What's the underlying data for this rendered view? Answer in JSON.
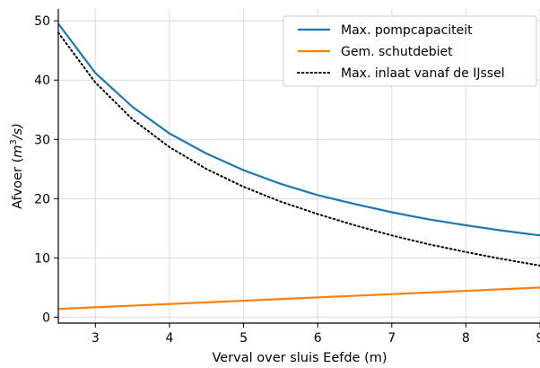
{
  "chart_data": {
    "type": "line",
    "xlabel": "Verval over sluis Eefde (m)",
    "ylabel_prefix": "Afvoer (",
    "ylabel_var": "m",
    "ylabel_sup": "3",
    "ylabel_suffix": "/s)",
    "xlim": [
      2.5,
      9
    ],
    "ylim": [
      -1,
      52
    ],
    "x_ticks": [
      3,
      4,
      5,
      6,
      7,
      8,
      9
    ],
    "x_tick_labels": [
      "3",
      "4",
      "5",
      "6",
      "7",
      "8",
      "9"
    ],
    "y_ticks": [
      0,
      10,
      20,
      30,
      40,
      50
    ],
    "y_tick_labels": [
      "0",
      "10",
      "20",
      "30",
      "40",
      "50"
    ],
    "grid": true,
    "legend_position": "top-right",
    "series": [
      {
        "name": "Max. pompcapaciteit",
        "color": "#1f77b4",
        "style": "solid",
        "x": [
          2.5,
          3.0,
          3.5,
          4.0,
          4.5,
          5.0,
          5.5,
          6.0,
          6.5,
          7.0,
          7.5,
          8.0,
          8.5,
          9.0
        ],
        "y": [
          49.5,
          41.2,
          35.5,
          31.0,
          27.6,
          24.8,
          22.5,
          20.6,
          19.1,
          17.7,
          16.5,
          15.5,
          14.6,
          13.8
        ]
      },
      {
        "name": "Gem. schutdebiet",
        "color": "#ff7f0e",
        "style": "solid",
        "x": [
          2.5,
          9.0
        ],
        "y": [
          1.4,
          5.0
        ]
      },
      {
        "name": "Max. inlaat vanaf de IJssel",
        "color": "#000000",
        "style": "dotted",
        "x": [
          2.5,
          3.0,
          3.5,
          4.0,
          4.5,
          5.0,
          5.5,
          6.0,
          6.5,
          7.0,
          7.5,
          8.0,
          8.5,
          9.0
        ],
        "y": [
          48.0,
          39.6,
          33.4,
          28.7,
          25.0,
          22.0,
          19.5,
          17.4,
          15.5,
          13.8,
          12.3,
          11.0,
          9.8,
          8.7
        ]
      }
    ]
  }
}
